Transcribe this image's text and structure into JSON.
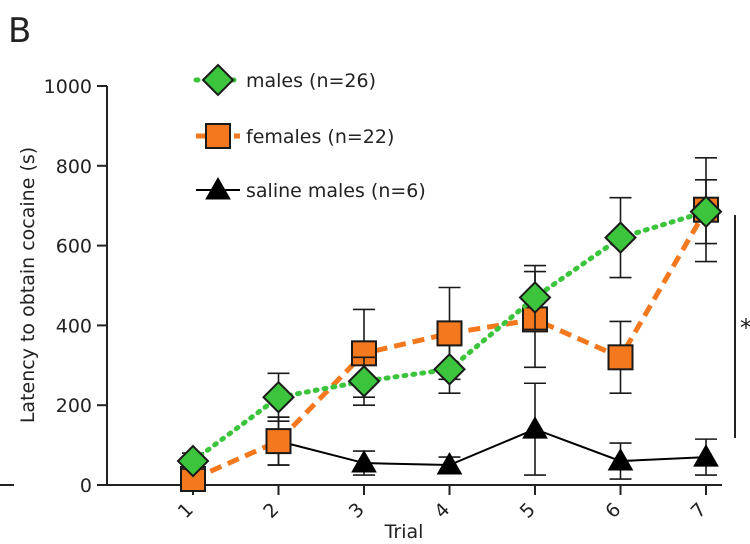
{
  "panel_letter": "B",
  "chart_data": {
    "type": "line",
    "xlabel": "Trial",
    "ylabel": "Latency to obtain cocaine (s)",
    "categories": [
      "1",
      "2",
      "3",
      "4",
      "5",
      "6",
      "7"
    ],
    "ylim": [
      0,
      1000
    ],
    "yticks": [
      "0",
      "200",
      "400",
      "600",
      "800",
      "1000"
    ],
    "legend_position": "top-left",
    "significance_label": "*",
    "series": [
      {
        "name": "males (n=26)",
        "color": "#3cc43c",
        "marker": "diamond",
        "line_style": "dotted",
        "values": [
          60,
          220,
          260,
          290,
          470,
          620,
          685
        ],
        "errors": [
          20,
          60,
          60,
          60,
          80,
          100,
          80
        ]
      },
      {
        "name": "females (n=22)",
        "color": "#f4781e",
        "marker": "square",
        "line_style": "dashed",
        "values": [
          15,
          110,
          330,
          380,
          415,
          320,
          690
        ],
        "errors": [
          10,
          60,
          110,
          115,
          120,
          90,
          130
        ]
      },
      {
        "name": "saline males (n=6)",
        "color": "#000000",
        "marker": "triangle",
        "line_style": "solid",
        "values": [
          null,
          110,
          55,
          50,
          140,
          60,
          70
        ],
        "errors": [
          null,
          60,
          30,
          20,
          115,
          45,
          45
        ]
      }
    ]
  }
}
